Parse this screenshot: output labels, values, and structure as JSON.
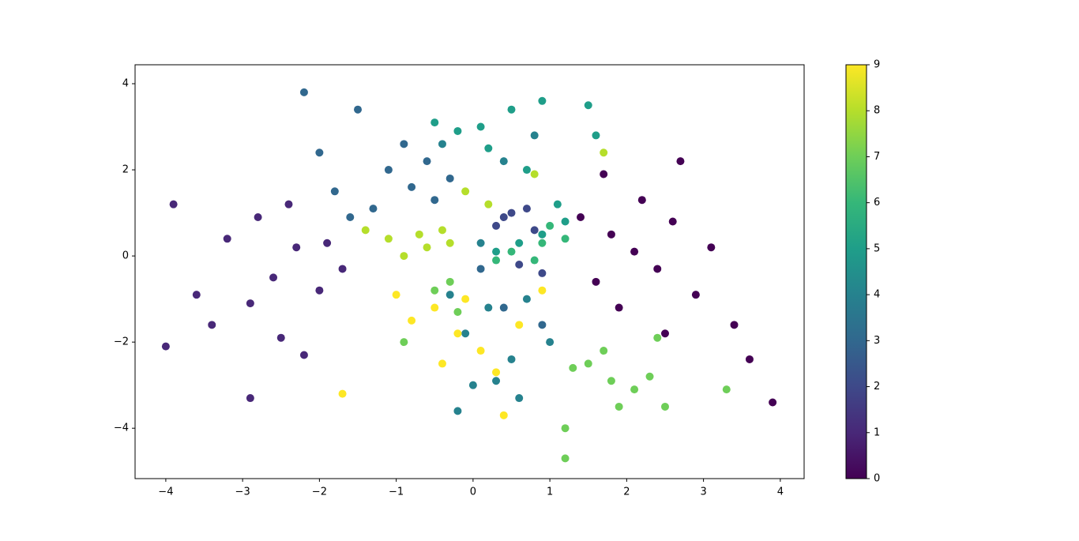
{
  "chart_data": {
    "type": "scatter",
    "x": [
      2.1,
      1.8,
      2.4,
      2.6,
      1.6,
      2.9,
      2.2,
      1.9,
      3.1,
      2.7,
      3.4,
      3.9,
      1.4,
      2.5,
      3.6,
      1.7,
      -2.6,
      -2.3,
      -2.9,
      -3.2,
      -2.0,
      -3.6,
      -2.5,
      -2.8,
      -1.9,
      -3.9,
      -4.0,
      -2.9,
      -2.2,
      -3.4,
      -2.4,
      -1.7,
      0.5,
      0.3,
      0.7,
      0.6,
      0.9,
      0.4,
      0.8,
      -0.8,
      -1.1,
      -0.5,
      -1.3,
      -0.9,
      -1.5,
      -2.0,
      -2.2,
      -0.3,
      -1.6,
      0.1,
      0.4,
      0.9,
      -0.6,
      -1.8,
      0.2,
      -0.1,
      0.5,
      0.0,
      0.7,
      0.3,
      -0.3,
      1.0,
      0.6,
      -0.2,
      0.1,
      0.4,
      0.8,
      -0.4,
      0.2,
      -0.2,
      0.5,
      0.1,
      0.9,
      1.5,
      0.6,
      0.9,
      0.3,
      1.2,
      -0.5,
      1.1,
      0.7,
      1.6,
      0.9,
      0.5,
      1.2,
      0.3,
      0.8,
      1.0,
      1.8,
      1.5,
      2.1,
      2.3,
      1.3,
      1.9,
      2.5,
      1.2,
      1.2,
      1.7,
      3.3,
      2.4,
      -0.5,
      -0.3,
      -0.9,
      -0.2,
      -0.6,
      -0.9,
      -0.3,
      -1.1,
      -0.1,
      0.2,
      -0.4,
      -1.4,
      1.7,
      0.8,
      -0.7,
      -0.2,
      -0.5,
      0.1,
      -0.8,
      0.3,
      -0.4,
      0.6,
      0.4,
      -1.0,
      -1.7,
      -0.1,
      0.9
    ],
    "values": [
      0.1,
      0.5,
      -0.3,
      0.8,
      -0.6,
      -0.9,
      1.3,
      -1.2,
      0.2,
      2.2,
      -1.6,
      -3.4,
      0.9,
      -1.8,
      -2.4,
      1.9,
      -0.5,
      0.2,
      -1.1,
      0.4,
      -0.8,
      -0.9,
      -1.9,
      0.9,
      0.3,
      1.2,
      -2.1,
      -3.3,
      -2.3,
      -1.6,
      1.2,
      -0.3,
      1.0,
      0.7,
      1.1,
      -0.2,
      -0.4,
      0.9,
      0.6,
      1.6,
      2.0,
      1.3,
      1.1,
      2.6,
      3.4,
      2.4,
      3.8,
      1.8,
      0.9,
      -0.3,
      -1.2,
      -1.6,
      2.2,
      1.5,
      -1.2,
      -1.8,
      -2.4,
      -3.0,
      -1.0,
      -2.9,
      -0.9,
      -2.0,
      -3.3,
      -3.6,
      0.3,
      2.2,
      2.8,
      2.6,
      2.5,
      2.9,
      3.4,
      3.0,
      3.6,
      3.5,
      0.3,
      0.5,
      0.1,
      0.8,
      3.1,
      1.2,
      2.0,
      2.8,
      0.3,
      0.1,
      0.4,
      -0.1,
      -0.1,
      0.7,
      -2.9,
      -2.5,
      -3.1,
      -2.8,
      -2.6,
      -3.5,
      -3.5,
      -4.0,
      -4.7,
      -2.2,
      -3.1,
      -1.9,
      -0.8,
      -0.6,
      -2.0,
      -1.3,
      0.2,
      0.0,
      0.3,
      0.4,
      1.5,
      1.2,
      0.6,
      0.6,
      2.4,
      1.9,
      0.5,
      -1.8,
      -1.2,
      -2.2,
      -1.5,
      -2.7,
      -2.5,
      -1.6,
      -3.7,
      -0.9,
      -3.2,
      -1.0,
      -0.8
    ],
    "colors": [
      0,
      0,
      0,
      0,
      0,
      0,
      0,
      0,
      0,
      0,
      0,
      0,
      0,
      0,
      0,
      0,
      1,
      1,
      1,
      1,
      1,
      1,
      1,
      1,
      1,
      1,
      1,
      1,
      1,
      1,
      1,
      1,
      2,
      2,
      2,
      2,
      2,
      2,
      2,
      3,
      3,
      3,
      3,
      3,
      3,
      3,
      3,
      3,
      3,
      3,
      3,
      3,
      3,
      3,
      4,
      4,
      4,
      4,
      4,
      4,
      4,
      4,
      4,
      4,
      4,
      4,
      4,
      4,
      5,
      5,
      5,
      5,
      5,
      5,
      5,
      5,
      5,
      5,
      5,
      5,
      5,
      5,
      6,
      6,
      6,
      6,
      6,
      6,
      7,
      7,
      7,
      7,
      7,
      7,
      7,
      7,
      7,
      7,
      7,
      7,
      7,
      7,
      7,
      7,
      8,
      8,
      8,
      8,
      8,
      8,
      8,
      8,
      8,
      8,
      8,
      9,
      9,
      9,
      9,
      9,
      9,
      9,
      9,
      9,
      9,
      9,
      9
    ],
    "colorscale": [
      "#440154",
      "#482878",
      "#3e4989",
      "#31688e",
      "#26828e",
      "#1f9e89",
      "#35b779",
      "#6ece58",
      "#b5de2b",
      "#fde725"
    ],
    "clim": [
      0,
      9
    ],
    "cticks": [
      0,
      1,
      2,
      3,
      4,
      5,
      6,
      7,
      8,
      9
    ],
    "xlim": [
      -4.4,
      4.31
    ],
    "ylim": [
      -5.17,
      4.44
    ],
    "xticks": [
      {
        "value": -4,
        "label": "−4"
      },
      {
        "value": -3,
        "label": "−3"
      },
      {
        "value": -2,
        "label": "−2"
      },
      {
        "value": -1,
        "label": "−1"
      },
      0,
      1,
      2,
      3,
      4
    ],
    "yticks": [
      {
        "value": -4,
        "label": "−4"
      },
      {
        "value": -2,
        "label": "−2"
      },
      0,
      2,
      4
    ]
  }
}
